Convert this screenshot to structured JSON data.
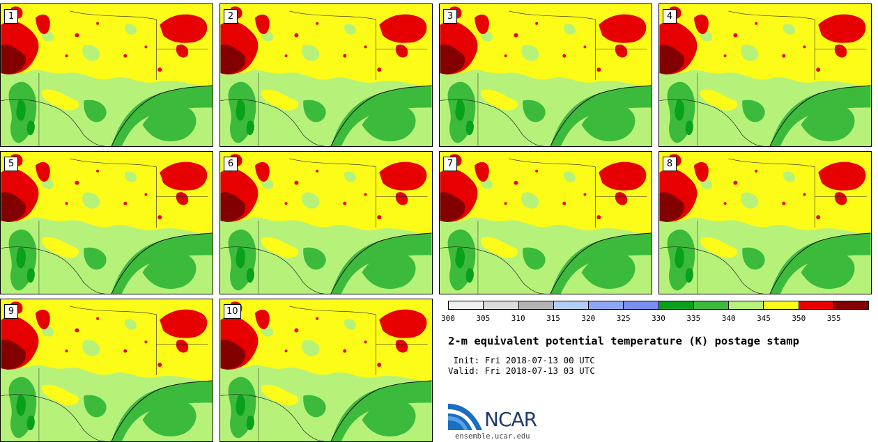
{
  "panels": [
    {
      "label": "1"
    },
    {
      "label": "2"
    },
    {
      "label": "3"
    },
    {
      "label": "4"
    },
    {
      "label": "5"
    },
    {
      "label": "6"
    },
    {
      "label": "7"
    },
    {
      "label": "8"
    },
    {
      "label": "9"
    },
    {
      "label": "10"
    }
  ],
  "colorbar": {
    "colors": [
      "#f0f0f0",
      "#dcdcdc",
      "#b3b3b3",
      "#b4cdf8",
      "#8ea4f7",
      "#7b8ff0",
      "#09a11c",
      "#3cba3c",
      "#b6f27a",
      "#fdfb18",
      "#e60000",
      "#820000"
    ],
    "ticks": [
      "300",
      "305",
      "310",
      "315",
      "320",
      "325",
      "330",
      "335",
      "340",
      "345",
      "350",
      "355"
    ]
  },
  "title": "2-m equivalent potential temperature (K) postage stamp",
  "init_text": " Init: Fri 2018-07-13 00 UTC",
  "valid_text": "Valid: Fri 2018-07-13 03 UTC",
  "logo": {
    "text": "NCAR",
    "url": "ensemble.ucar.edu"
  }
}
